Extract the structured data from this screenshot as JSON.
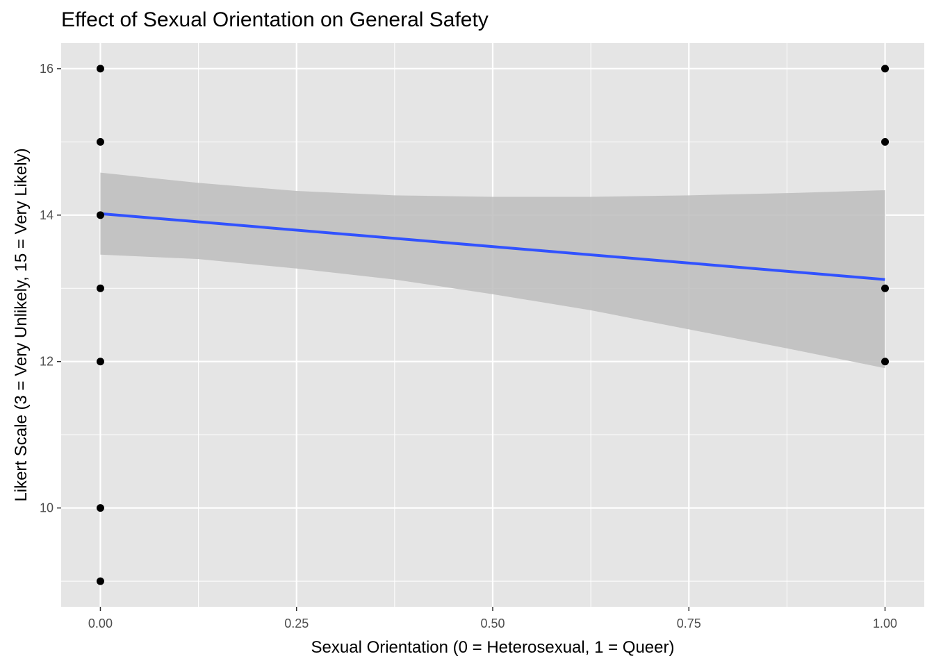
{
  "chart_data": {
    "type": "scatter",
    "title": "Effect of Sexual Orientation on General Safety",
    "xlabel": "Sexual Orientation (0 = Heterosexual, 1 = Queer)",
    "ylabel": "Likert Scale (3 = Very Unlikely, 15 = Very Likely)",
    "xlim": [
      -0.05,
      1.05
    ],
    "ylim": [
      8.65,
      16.35
    ],
    "x_ticks": [
      0,
      0.25,
      0.5,
      0.75,
      1
    ],
    "x_tick_labels": [
      "0.00",
      "0.25",
      "0.50",
      "0.75",
      "1.00"
    ],
    "y_ticks": [
      10,
      12,
      14,
      16
    ],
    "y_tick_labels": [
      "10",
      "12",
      "14",
      "16"
    ],
    "grid": true,
    "colors": {
      "panel_background": "#e5e5e5",
      "grid_line": "#ffffff",
      "points": "#000000",
      "fit_line": "#3152ff",
      "confidence_band": "#bdbdbd"
    },
    "points": [
      {
        "x": 0,
        "y": 16
      },
      {
        "x": 0,
        "y": 15
      },
      {
        "x": 0,
        "y": 14
      },
      {
        "x": 0,
        "y": 13
      },
      {
        "x": 0,
        "y": 12
      },
      {
        "x": 0,
        "y": 10
      },
      {
        "x": 0,
        "y": 9
      },
      {
        "x": 1,
        "y": 16
      },
      {
        "x": 1,
        "y": 15
      },
      {
        "x": 1,
        "y": 13
      },
      {
        "x": 1,
        "y": 12
      }
    ],
    "fit_line": {
      "method": "linear regression",
      "x": [
        0,
        1
      ],
      "y": [
        14.02,
        13.12
      ]
    },
    "confidence_band": {
      "x": [
        0,
        0.125,
        0.25,
        0.375,
        0.5,
        0.625,
        0.75,
        0.875,
        1
      ],
      "upper": [
        14.58,
        14.44,
        14.33,
        14.27,
        14.25,
        14.25,
        14.27,
        14.3,
        14.34
      ],
      "lower": [
        13.46,
        13.4,
        13.27,
        13.12,
        12.92,
        12.7,
        12.44,
        12.18,
        11.91
      ]
    }
  }
}
